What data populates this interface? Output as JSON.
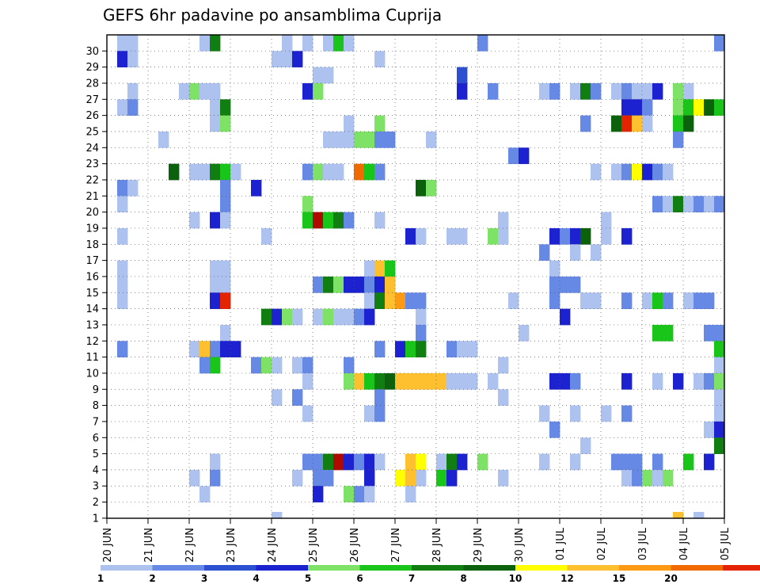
{
  "chart_data": {
    "type": "heatmap",
    "title": "GEFS 6hr padavine po ansamblima Cuprija",
    "x_tick_labels": [
      "20 JUN",
      "21 JUN",
      "22 JUN",
      "23 JUN",
      "24 JUN",
      "25 JUN",
      "26 JUN",
      "27 JUN",
      "28 JUN",
      "29 JUN",
      "30 JUN",
      "01 JUL",
      "02 JUL",
      "03 JUL",
      "04 JUL",
      "05 JUL"
    ],
    "y_tick_labels": [
      "1",
      "2",
      "3",
      "4",
      "5",
      "6",
      "7",
      "8",
      "9",
      "10",
      "11",
      "12",
      "13",
      "14",
      "15",
      "16",
      "17",
      "18",
      "19",
      "20",
      "21",
      "22",
      "23",
      "24",
      "25",
      "26",
      "27",
      "28",
      "29",
      "30"
    ],
    "x_range_steps": [
      0,
      60
    ],
    "y_range": [
      0,
      30
    ],
    "grid": true,
    "legend": "bottom colorbar",
    "colorbar": {
      "labels": [
        "1",
        "2",
        "3",
        "4",
        "5",
        "6",
        "7",
        "8",
        "10",
        "12",
        "15",
        "20"
      ],
      "colors": [
        "#aec2f0",
        "#6689e6",
        "#2d4fd2",
        "#1c22d0",
        "#7ee266",
        "#19c519",
        "#117e11",
        "#0c620c",
        "#ffff00",
        "#ffc030",
        "#fc9a14",
        "#f06a00",
        "#e42300",
        "#b00a00",
        "#6e0000"
      ]
    },
    "cells": [
      [
        30,
        1,
        0
      ],
      [
        30,
        2,
        0
      ],
      [
        30,
        9,
        0
      ],
      [
        30,
        10,
        6
      ],
      [
        30,
        17,
        0
      ],
      [
        30,
        19,
        0
      ],
      [
        30,
        21,
        0
      ],
      [
        30,
        22,
        5
      ],
      [
        30,
        23,
        0
      ],
      [
        30,
        36,
        1
      ],
      [
        30,
        59,
        1
      ],
      [
        29,
        1,
        3
      ],
      [
        29,
        2,
        0
      ],
      [
        29,
        16,
        0
      ],
      [
        29,
        17,
        0
      ],
      [
        29,
        18,
        3
      ],
      [
        29,
        26,
        0
      ],
      [
        28,
        20,
        0
      ],
      [
        28,
        21,
        0
      ],
      [
        28,
        34,
        2
      ],
      [
        27,
        2,
        0
      ],
      [
        27,
        7,
        0
      ],
      [
        27,
        8,
        4
      ],
      [
        27,
        9,
        0
      ],
      [
        27,
        10,
        0
      ],
      [
        27,
        19,
        3
      ],
      [
        27,
        20,
        4
      ],
      [
        27,
        34,
        3
      ],
      [
        27,
        37,
        1
      ],
      [
        27,
        42,
        0
      ],
      [
        27,
        43,
        1
      ],
      [
        27,
        45,
        0
      ],
      [
        27,
        46,
        6
      ],
      [
        27,
        47,
        1
      ],
      [
        27,
        49,
        0
      ],
      [
        27,
        50,
        1
      ],
      [
        27,
        51,
        0
      ],
      [
        27,
        52,
        0
      ],
      [
        27,
        53,
        3
      ],
      [
        27,
        55,
        4
      ],
      [
        27,
        56,
        0
      ],
      [
        26,
        1,
        0
      ],
      [
        26,
        2,
        1
      ],
      [
        26,
        10,
        0
      ],
      [
        26,
        11,
        6
      ],
      [
        26,
        50,
        3
      ],
      [
        26,
        51,
        3
      ],
      [
        26,
        52,
        1
      ],
      [
        26,
        55,
        4
      ],
      [
        26,
        56,
        5
      ],
      [
        26,
        57,
        8
      ],
      [
        26,
        58,
        7
      ],
      [
        26,
        59,
        5
      ],
      [
        25,
        10,
        0
      ],
      [
        25,
        11,
        4
      ],
      [
        25,
        23,
        0
      ],
      [
        25,
        26,
        4
      ],
      [
        25,
        46,
        1
      ],
      [
        25,
        49,
        7
      ],
      [
        25,
        50,
        12
      ],
      [
        25,
        51,
        9
      ],
      [
        25,
        52,
        0
      ],
      [
        25,
        55,
        5
      ],
      [
        25,
        56,
        7
      ],
      [
        24,
        5,
        0
      ],
      [
        24,
        21,
        0
      ],
      [
        24,
        22,
        0
      ],
      [
        24,
        23,
        0
      ],
      [
        24,
        24,
        4
      ],
      [
        24,
        25,
        4
      ],
      [
        24,
        26,
        1
      ],
      [
        24,
        27,
        1
      ],
      [
        24,
        31,
        0
      ],
      [
        24,
        55,
        1
      ],
      [
        23,
        39,
        1
      ],
      [
        23,
        40,
        3
      ],
      [
        22,
        6,
        7
      ],
      [
        22,
        8,
        0
      ],
      [
        22,
        9,
        0
      ],
      [
        22,
        10,
        6
      ],
      [
        22,
        11,
        5
      ],
      [
        22,
        12,
        0
      ],
      [
        22,
        19,
        1
      ],
      [
        22,
        20,
        4
      ],
      [
        22,
        21,
        0
      ],
      [
        22,
        22,
        0
      ],
      [
        22,
        24,
        11
      ],
      [
        22,
        25,
        5
      ],
      [
        22,
        26,
        1
      ],
      [
        22,
        47,
        0
      ],
      [
        22,
        49,
        0
      ],
      [
        22,
        50,
        1
      ],
      [
        22,
        51,
        8
      ],
      [
        22,
        52,
        3
      ],
      [
        22,
        53,
        1
      ],
      [
        22,
        54,
        0
      ],
      [
        21,
        1,
        1
      ],
      [
        21,
        2,
        0
      ],
      [
        21,
        11,
        1
      ],
      [
        21,
        14,
        3
      ],
      [
        21,
        30,
        7
      ],
      [
        21,
        31,
        4
      ],
      [
        20,
        1,
        0
      ],
      [
        20,
        11,
        1
      ],
      [
        20,
        19,
        4
      ],
      [
        20,
        53,
        1
      ],
      [
        20,
        54,
        0
      ],
      [
        20,
        55,
        6
      ],
      [
        20,
        56,
        0
      ],
      [
        20,
        57,
        1
      ],
      [
        20,
        58,
        0
      ],
      [
        20,
        59,
        1
      ],
      [
        19,
        8,
        0
      ],
      [
        19,
        10,
        3
      ],
      [
        19,
        11,
        0
      ],
      [
        19,
        19,
        5
      ],
      [
        19,
        20,
        13
      ],
      [
        19,
        21,
        5
      ],
      [
        19,
        22,
        6
      ],
      [
        19,
        23,
        1
      ],
      [
        19,
        26,
        0
      ],
      [
        19,
        38,
        0
      ],
      [
        19,
        48,
        0
      ],
      [
        18,
        1,
        0
      ],
      [
        18,
        15,
        0
      ],
      [
        18,
        29,
        3
      ],
      [
        18,
        30,
        0
      ],
      [
        18,
        33,
        0
      ],
      [
        18,
        34,
        0
      ],
      [
        18,
        37,
        4
      ],
      [
        18,
        38,
        0
      ],
      [
        18,
        43,
        3
      ],
      [
        18,
        44,
        1
      ],
      [
        18,
        45,
        3
      ],
      [
        18,
        46,
        7
      ],
      [
        18,
        48,
        0
      ],
      [
        18,
        50,
        3
      ],
      [
        17,
        42,
        1
      ],
      [
        17,
        45,
        0
      ],
      [
        17,
        47,
        0
      ],
      [
        16,
        1,
        0
      ],
      [
        16,
        10,
        0
      ],
      [
        16,
        11,
        0
      ],
      [
        16,
        25,
        0
      ],
      [
        16,
        26,
        9
      ],
      [
        16,
        27,
        5
      ],
      [
        16,
        43,
        0
      ],
      [
        15,
        1,
        0
      ],
      [
        15,
        10,
        0
      ],
      [
        15,
        11,
        0
      ],
      [
        15,
        20,
        1
      ],
      [
        15,
        21,
        6
      ],
      [
        15,
        22,
        4
      ],
      [
        15,
        23,
        3
      ],
      [
        15,
        24,
        3
      ],
      [
        15,
        25,
        1
      ],
      [
        15,
        26,
        3
      ],
      [
        15,
        27,
        9
      ],
      [
        15,
        43,
        1
      ],
      [
        15,
        44,
        1
      ],
      [
        15,
        45,
        1
      ],
      [
        14,
        1,
        0
      ],
      [
        14,
        10,
        3
      ],
      [
        14,
        11,
        12
      ],
      [
        14,
        25,
        0
      ],
      [
        14,
        26,
        6
      ],
      [
        14,
        27,
        9
      ],
      [
        14,
        28,
        10
      ],
      [
        14,
        29,
        1
      ],
      [
        14,
        30,
        1
      ],
      [
        14,
        39,
        0
      ],
      [
        14,
        43,
        1
      ],
      [
        14,
        46,
        0
      ],
      [
        14,
        47,
        0
      ],
      [
        14,
        50,
        1
      ],
      [
        14,
        52,
        0
      ],
      [
        14,
        53,
        5
      ],
      [
        14,
        54,
        1
      ],
      [
        14,
        56,
        0
      ],
      [
        14,
        57,
        1
      ],
      [
        14,
        58,
        1
      ],
      [
        13,
        15,
        6
      ],
      [
        13,
        16,
        3
      ],
      [
        13,
        17,
        4
      ],
      [
        13,
        18,
        0
      ],
      [
        13,
        20,
        0
      ],
      [
        13,
        21,
        4
      ],
      [
        13,
        22,
        0
      ],
      [
        13,
        23,
        0
      ],
      [
        13,
        24,
        1
      ],
      [
        13,
        25,
        3
      ],
      [
        13,
        30,
        0
      ],
      [
        13,
        44,
        3
      ],
      [
        12,
        11,
        0
      ],
      [
        12,
        30,
        1
      ],
      [
        12,
        40,
        0
      ],
      [
        12,
        53,
        5
      ],
      [
        12,
        54,
        5
      ],
      [
        12,
        58,
        1
      ],
      [
        12,
        59,
        1
      ],
      [
        11,
        1,
        1
      ],
      [
        11,
        8,
        0
      ],
      [
        11,
        9,
        9
      ],
      [
        11,
        10,
        1
      ],
      [
        11,
        11,
        3
      ],
      [
        11,
        12,
        3
      ],
      [
        11,
        26,
        1
      ],
      [
        11,
        28,
        3
      ],
      [
        11,
        29,
        5
      ],
      [
        11,
        30,
        6
      ],
      [
        11,
        33,
        1
      ],
      [
        11,
        34,
        0
      ],
      [
        11,
        35,
        0
      ],
      [
        11,
        59,
        5
      ],
      [
        10,
        9,
        1
      ],
      [
        10,
        10,
        5
      ],
      [
        10,
        14,
        1
      ],
      [
        10,
        15,
        4
      ],
      [
        10,
        16,
        0
      ],
      [
        10,
        18,
        0
      ],
      [
        10,
        19,
        1
      ],
      [
        10,
        23,
        1
      ],
      [
        10,
        38,
        0
      ],
      [
        10,
        59,
        0
      ],
      [
        9,
        19,
        0
      ],
      [
        9,
        23,
        4
      ],
      [
        9,
        24,
        9
      ],
      [
        9,
        25,
        5
      ],
      [
        9,
        26,
        6
      ],
      [
        9,
        27,
        7
      ],
      [
        9,
        28,
        9
      ],
      [
        9,
        29,
        9
      ],
      [
        9,
        30,
        9
      ],
      [
        9,
        31,
        9
      ],
      [
        9,
        32,
        9
      ],
      [
        9,
        33,
        0
      ],
      [
        9,
        34,
        0
      ],
      [
        9,
        35,
        0
      ],
      [
        9,
        37,
        0
      ],
      [
        9,
        43,
        3
      ],
      [
        9,
        44,
        3
      ],
      [
        9,
        45,
        1
      ],
      [
        9,
        50,
        3
      ],
      [
        9,
        53,
        0
      ],
      [
        9,
        55,
        3
      ],
      [
        9,
        57,
        0
      ],
      [
        9,
        58,
        1
      ],
      [
        9,
        59,
        4
      ],
      [
        8,
        16,
        0
      ],
      [
        8,
        18,
        1
      ],
      [
        8,
        26,
        1
      ],
      [
        8,
        38,
        0
      ],
      [
        8,
        59,
        0
      ],
      [
        7,
        19,
        0
      ],
      [
        7,
        25,
        0
      ],
      [
        7,
        26,
        1
      ],
      [
        7,
        42,
        0
      ],
      [
        7,
        45,
        0
      ],
      [
        7,
        48,
        0
      ],
      [
        7,
        50,
        1
      ],
      [
        7,
        59,
        0
      ],
      [
        6,
        43,
        1
      ],
      [
        6,
        58,
        0
      ],
      [
        6,
        59,
        3
      ],
      [
        5,
        46,
        0
      ],
      [
        5,
        59,
        6
      ],
      [
        4,
        10,
        0
      ],
      [
        4,
        19,
        1
      ],
      [
        4,
        20,
        1
      ],
      [
        4,
        21,
        6
      ],
      [
        4,
        22,
        13
      ],
      [
        4,
        23,
        3
      ],
      [
        4,
        24,
        1
      ],
      [
        4,
        25,
        3
      ],
      [
        4,
        26,
        0
      ],
      [
        4,
        29,
        9
      ],
      [
        4,
        30,
        8
      ],
      [
        4,
        32,
        0
      ],
      [
        4,
        33,
        6
      ],
      [
        4,
        34,
        3
      ],
      [
        4,
        36,
        4
      ],
      [
        4,
        42,
        0
      ],
      [
        4,
        45,
        0
      ],
      [
        4,
        49,
        1
      ],
      [
        4,
        50,
        1
      ],
      [
        4,
        51,
        1
      ],
      [
        4,
        53,
        1
      ],
      [
        4,
        56,
        5
      ],
      [
        4,
        58,
        3
      ],
      [
        3,
        8,
        0
      ],
      [
        3,
        10,
        1
      ],
      [
        3,
        18,
        0
      ],
      [
        3,
        20,
        1
      ],
      [
        3,
        21,
        1
      ],
      [
        3,
        25,
        3
      ],
      [
        3,
        28,
        8
      ],
      [
        3,
        29,
        9
      ],
      [
        3,
        30,
        0
      ],
      [
        3,
        32,
        5
      ],
      [
        3,
        33,
        3
      ],
      [
        3,
        38,
        0
      ],
      [
        3,
        50,
        0
      ],
      [
        3,
        51,
        1
      ],
      [
        3,
        52,
        4
      ],
      [
        3,
        53,
        0
      ],
      [
        3,
        54,
        4
      ],
      [
        2,
        9,
        0
      ],
      [
        2,
        20,
        3
      ],
      [
        2,
        23,
        4
      ],
      [
        2,
        24,
        1
      ],
      [
        2,
        25,
        0
      ],
      [
        2,
        29,
        0
      ]
    ],
    "bottom_row": [
      [
        16,
        0
      ],
      [
        55,
        9
      ],
      [
        57,
        0
      ]
    ]
  }
}
